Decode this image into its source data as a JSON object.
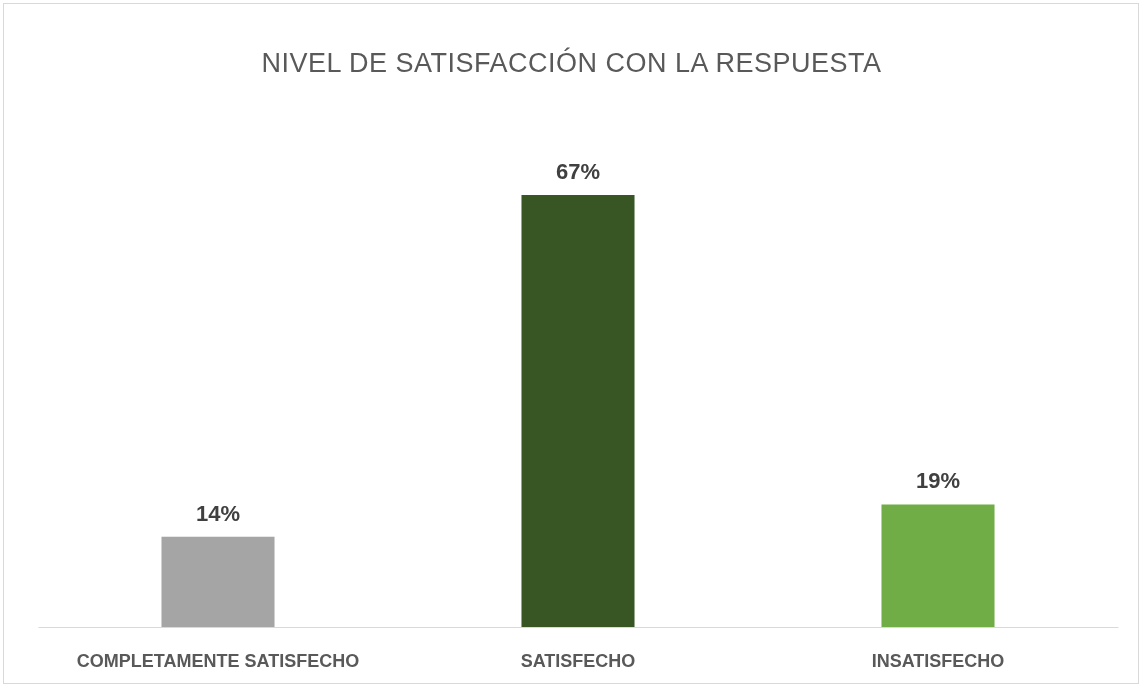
{
  "chart_data": {
    "type": "bar",
    "title": "NIVEL DE SATISFACCIÓN CON LA RESPUESTA",
    "categories": [
      "COMPLETAMENTE SATISFECHO",
      "SATISFECHO",
      "INSATISFECHO"
    ],
    "values": [
      14,
      67,
      19
    ],
    "colors": [
      "#a5a5a5",
      "#375623",
      "#70ad47"
    ],
    "value_labels": [
      "14%",
      "67%",
      "19%"
    ],
    "grid": false,
    "legend": false
  }
}
